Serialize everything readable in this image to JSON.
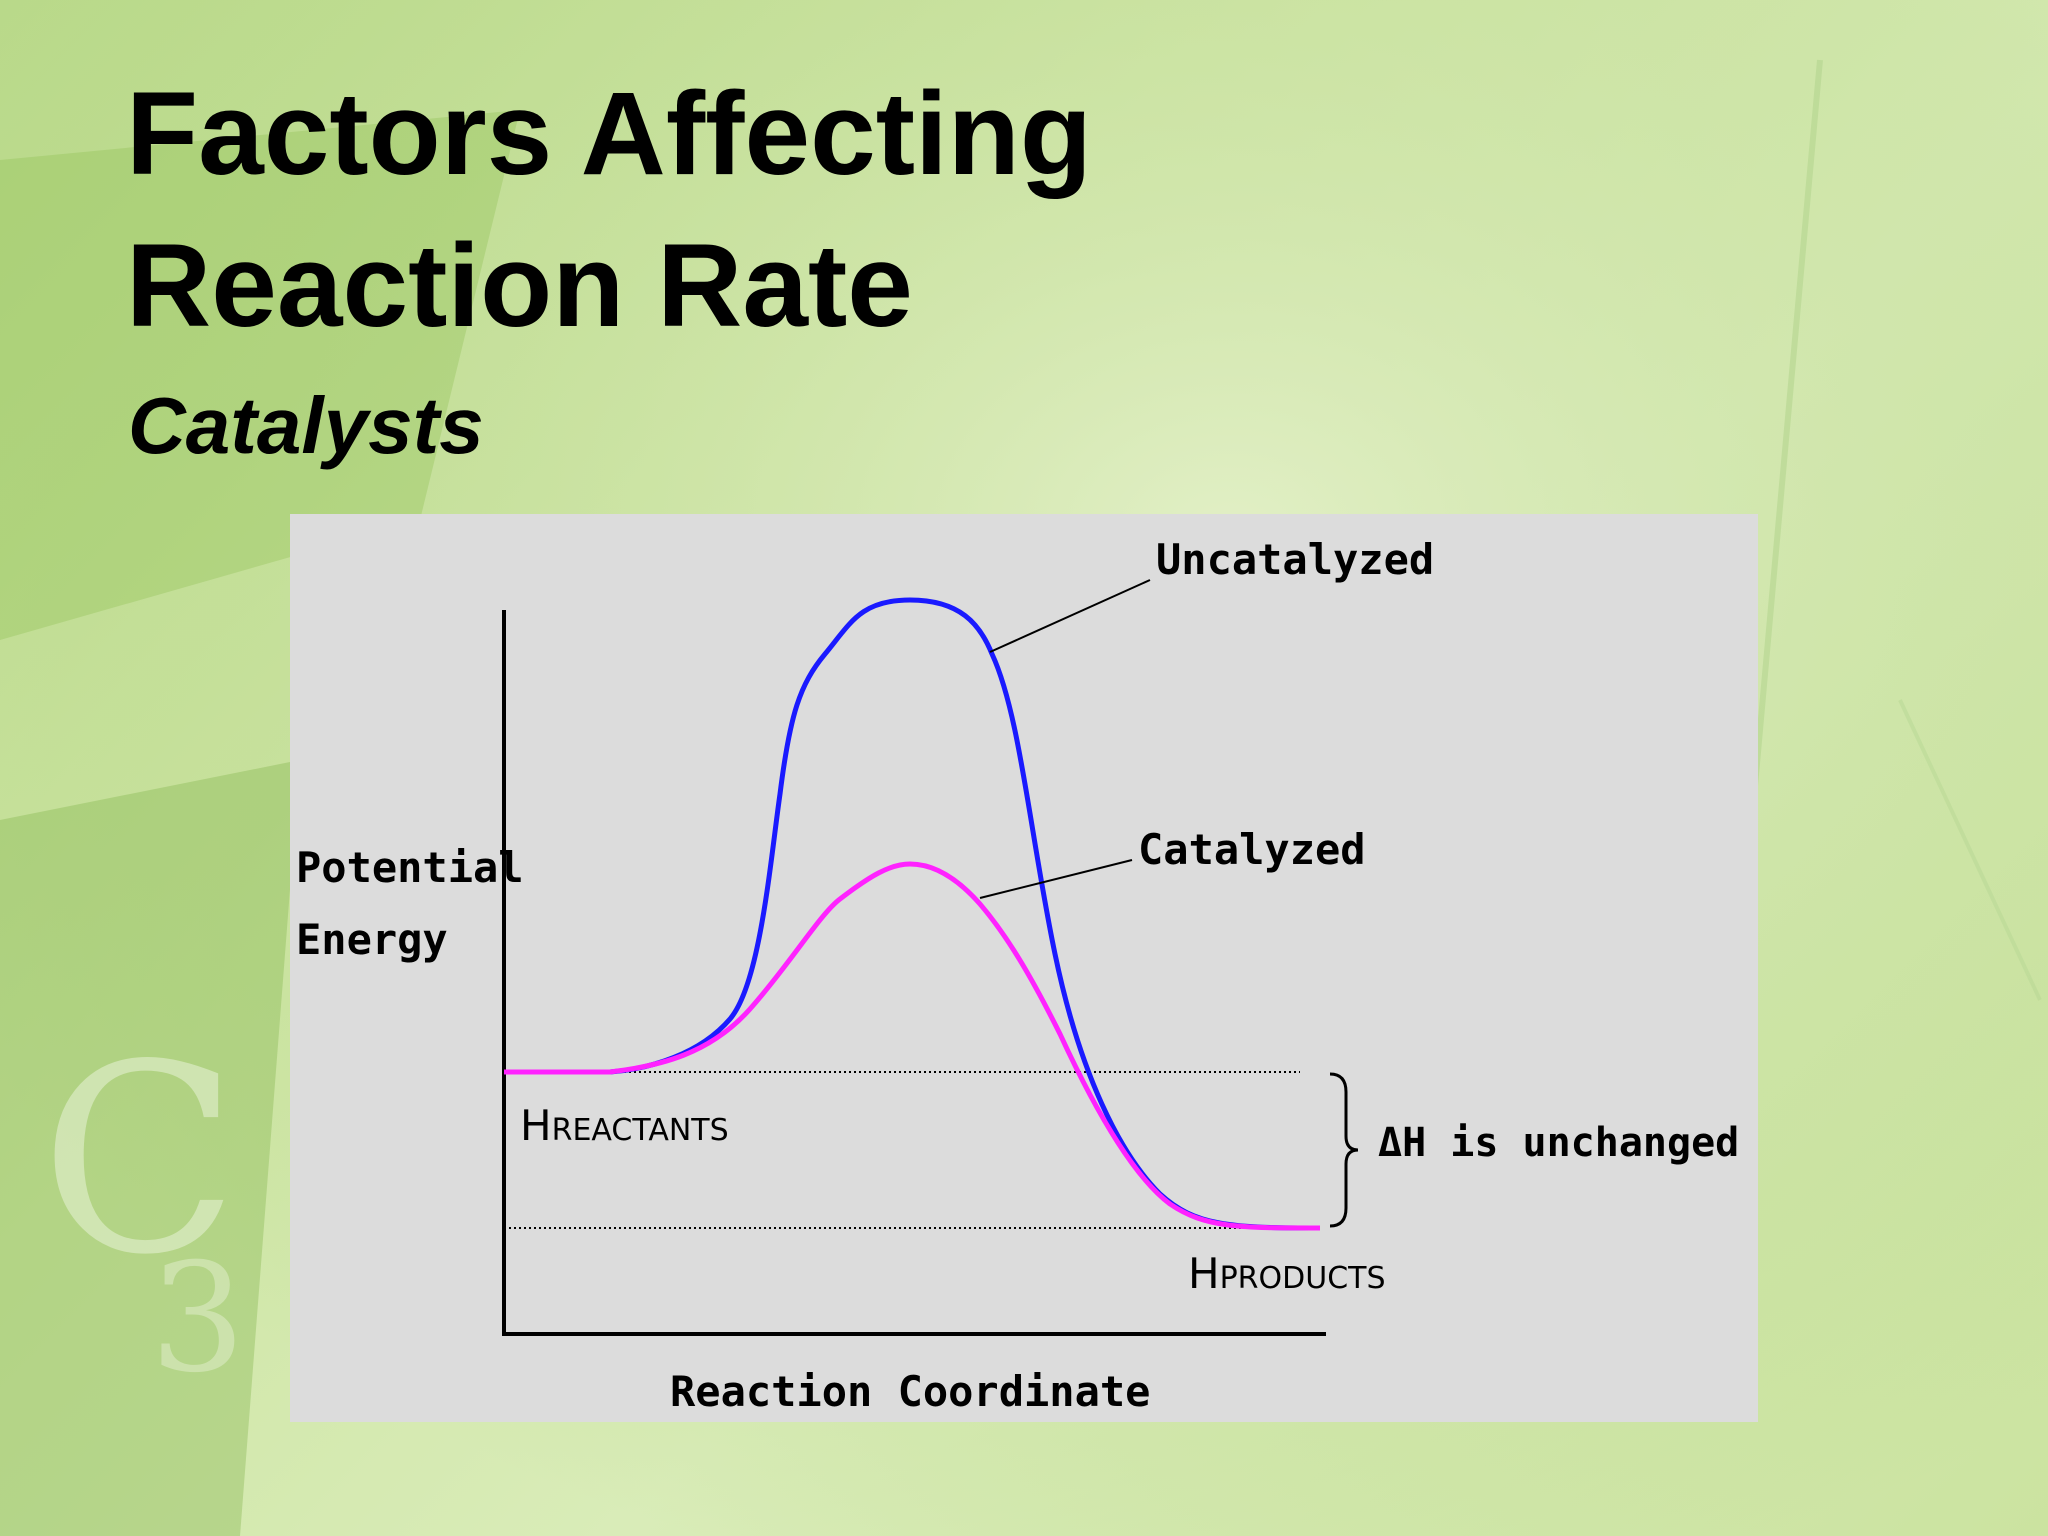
{
  "slide": {
    "title_line1": "Factors Affecting",
    "title_line2": "Reaction Rate",
    "subtitle": "Catalysts"
  },
  "diagram": {
    "y_axis_label_line1": "Potential",
    "y_axis_label_line2": "Energy",
    "x_axis_label": "Reaction Coordinate",
    "uncatalyzed_label": "Uncatalyzed",
    "catalyzed_label": "Catalyzed",
    "h_reactants": {
      "main": "H",
      "sub": "REACTANTS"
    },
    "h_products": {
      "main": "H",
      "sub": "PRODUCTS"
    },
    "delta_h": {
      "prefix": "ΔH is",
      "emph": "unchanged"
    },
    "colors": {
      "uncatalyzed": "#1a1aff",
      "catalyzed": "#ff22ff",
      "axes": "#000000",
      "panel": "#dcdcdc"
    }
  }
}
